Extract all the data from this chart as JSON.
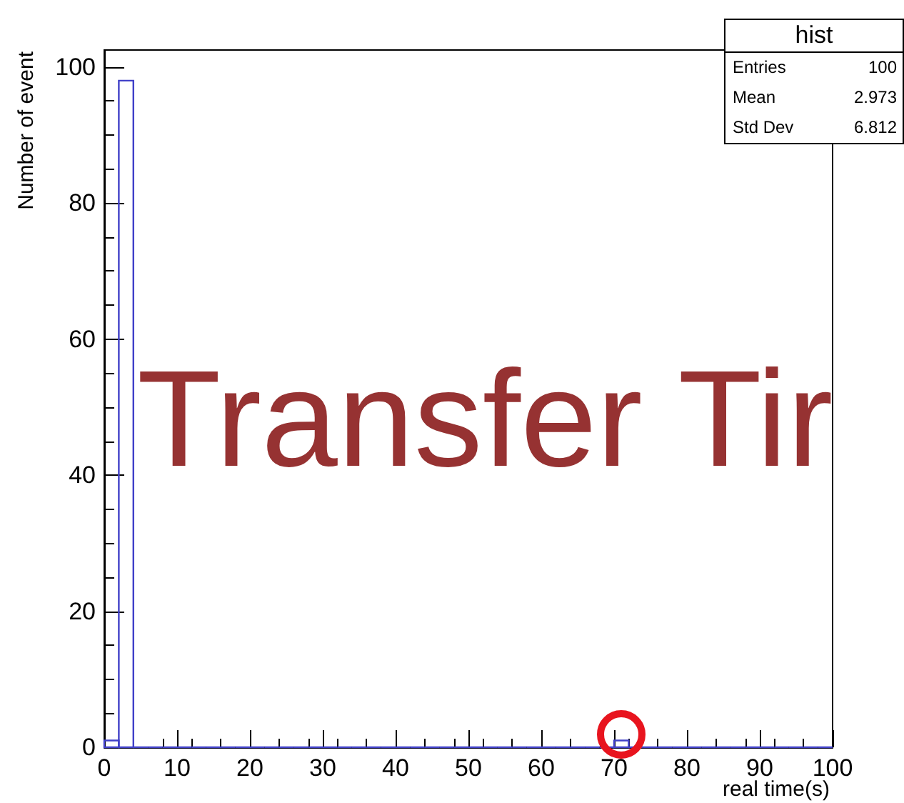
{
  "chart_data": {
    "type": "histogram",
    "title": "hist",
    "xlabel": "real time(s)",
    "ylabel": "Number of event",
    "bins": [
      0,
      2,
      4,
      6,
      8,
      10,
      12,
      14,
      16,
      18,
      20,
      22,
      24,
      26,
      28,
      30,
      32,
      34,
      36,
      38,
      40,
      42,
      44,
      46,
      48,
      50,
      52,
      54,
      56,
      58,
      60,
      62,
      64,
      66,
      68,
      70,
      72,
      74,
      76,
      78,
      80,
      82,
      84,
      86,
      88,
      90,
      92,
      94,
      96,
      98,
      100
    ],
    "values": [
      1,
      98,
      0,
      0,
      0,
      0,
      0,
      0,
      0,
      0,
      0,
      0,
      0,
      0,
      0,
      0,
      0,
      0,
      0,
      0,
      0,
      0,
      0,
      0,
      0,
      0,
      0,
      0,
      0,
      0,
      0,
      0,
      0,
      0,
      0,
      1,
      0,
      0,
      0,
      0,
      0,
      0,
      0,
      0,
      0,
      0,
      0,
      0,
      0,
      0
    ],
    "color": "#4040c8",
    "xlim": [
      0,
      100
    ],
    "xticks": [
      0,
      10,
      20,
      30,
      40,
      50,
      60,
      70,
      80,
      90,
      100
    ],
    "ylim": [
      0,
      102.5
    ],
    "yticks": [
      0,
      20,
      40,
      60,
      80,
      100
    ],
    "grid": false,
    "annotations": [
      "Entries",
      "100",
      "Mean",
      "2.973",
      "Std Dev",
      "6.812",
      "Transfer Tir"
    ]
  }
}
